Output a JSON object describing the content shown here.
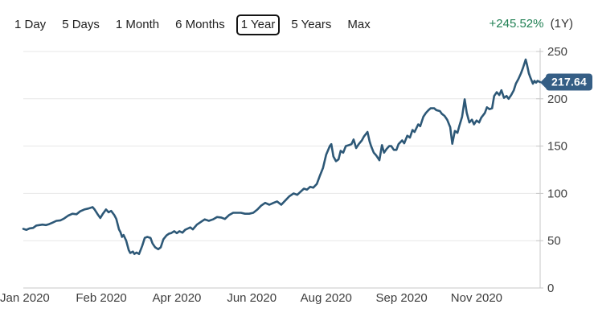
{
  "tabs": {
    "items": [
      {
        "label": "1 Day",
        "selected": false
      },
      {
        "label": "5 Days",
        "selected": false
      },
      {
        "label": "1 Month",
        "selected": false
      },
      {
        "label": "6 Months",
        "selected": false
      },
      {
        "label": "1 Year",
        "selected": true
      },
      {
        "label": "5 Years",
        "selected": false
      },
      {
        "label": "Max",
        "selected": false
      }
    ]
  },
  "change": {
    "value": "+245.52%",
    "period": "(1Y)",
    "positive_color": "#218054"
  },
  "price_badge": {
    "value": "217.64",
    "bg_color": "#355E85"
  },
  "chart_data": {
    "type": "line",
    "title": "",
    "xlabel": "",
    "ylabel": "",
    "ylim": [
      0,
      250
    ],
    "y_ticks": [
      0,
      50,
      100,
      150,
      200,
      250
    ],
    "grid": true,
    "legend": "none",
    "line_color": "#2d5877",
    "grid_color": "#e7e7e7",
    "axis_color": "#c7c7c7",
    "x_labels": [
      {
        "label": "Jan 2020",
        "t": 0.003
      },
      {
        "label": "Feb 2020",
        "t": 0.151
      },
      {
        "label": "Apr 2020",
        "t": 0.297
      },
      {
        "label": "Jun 2020",
        "t": 0.442
      },
      {
        "label": "Aug 2020",
        "t": 0.586
      },
      {
        "label": "Sep 2020",
        "t": 0.732
      },
      {
        "label": "Nov 2020",
        "t": 0.877
      }
    ],
    "last_price": 217.64,
    "points": [
      [
        0.0,
        62.5
      ],
      [
        0.006,
        61.5
      ],
      [
        0.012,
        63
      ],
      [
        0.019,
        63.5
      ],
      [
        0.025,
        66
      ],
      [
        0.031,
        66.5
      ],
      [
        0.037,
        67
      ],
      [
        0.044,
        66.5
      ],
      [
        0.05,
        67.5
      ],
      [
        0.056,
        69
      ],
      [
        0.064,
        71
      ],
      [
        0.072,
        71.5
      ],
      [
        0.079,
        73.5
      ],
      [
        0.087,
        76.5
      ],
      [
        0.095,
        78.5
      ],
      [
        0.103,
        78
      ],
      [
        0.11,
        81
      ],
      [
        0.118,
        83
      ],
      [
        0.126,
        84
      ],
      [
        0.134,
        85.5
      ],
      [
        0.138,
        83
      ],
      [
        0.145,
        77
      ],
      [
        0.149,
        74
      ],
      [
        0.154,
        78.5
      ],
      [
        0.16,
        83
      ],
      [
        0.165,
        80
      ],
      [
        0.17,
        81.5
      ],
      [
        0.176,
        77
      ],
      [
        0.18,
        73
      ],
      [
        0.185,
        62
      ],
      [
        0.188,
        59
      ],
      [
        0.191,
        54
      ],
      [
        0.194,
        56
      ],
      [
        0.199,
        50
      ],
      [
        0.204,
        40
      ],
      [
        0.207,
        37
      ],
      [
        0.212,
        38.5
      ],
      [
        0.215,
        36
      ],
      [
        0.219,
        37.5
      ],
      [
        0.224,
        36
      ],
      [
        0.23,
        44.5
      ],
      [
        0.235,
        53
      ],
      [
        0.24,
        54
      ],
      [
        0.246,
        53
      ],
      [
        0.25,
        47
      ],
      [
        0.255,
        43
      ],
      [
        0.261,
        41
      ],
      [
        0.266,
        43
      ],
      [
        0.271,
        51.5
      ],
      [
        0.277,
        55.5
      ],
      [
        0.282,
        57.5
      ],
      [
        0.286,
        58
      ],
      [
        0.292,
        60
      ],
      [
        0.297,
        58
      ],
      [
        0.302,
        60
      ],
      [
        0.308,
        58.5
      ],
      [
        0.313,
        61.5
      ],
      [
        0.317,
        62.5
      ],
      [
        0.323,
        64
      ],
      [
        0.328,
        62
      ],
      [
        0.336,
        67
      ],
      [
        0.344,
        70
      ],
      [
        0.351,
        72.5
      ],
      [
        0.359,
        71
      ],
      [
        0.367,
        72.5
      ],
      [
        0.375,
        75
      ],
      [
        0.383,
        74.5
      ],
      [
        0.39,
        73
      ],
      [
        0.398,
        77
      ],
      [
        0.406,
        79.5
      ],
      [
        0.414,
        79.5
      ],
      [
        0.421,
        79.5
      ],
      [
        0.429,
        78.5
      ],
      [
        0.437,
        78.5
      ],
      [
        0.445,
        79.5
      ],
      [
        0.453,
        83
      ],
      [
        0.46,
        87
      ],
      [
        0.468,
        90
      ],
      [
        0.476,
        88
      ],
      [
        0.484,
        90
      ],
      [
        0.491,
        91.5
      ],
      [
        0.499,
        88
      ],
      [
        0.507,
        92.5
      ],
      [
        0.515,
        97
      ],
      [
        0.523,
        100
      ],
      [
        0.53,
        98.5
      ],
      [
        0.535,
        101
      ],
      [
        0.543,
        105
      ],
      [
        0.549,
        104
      ],
      [
        0.555,
        107
      ],
      [
        0.561,
        106
      ],
      [
        0.568,
        110
      ],
      [
        0.574,
        119
      ],
      [
        0.58,
        127
      ],
      [
        0.586,
        141
      ],
      [
        0.593,
        150
      ],
      [
        0.596,
        152
      ],
      [
        0.6,
        139
      ],
      [
        0.605,
        134
      ],
      [
        0.61,
        136
      ],
      [
        0.614,
        145
      ],
      [
        0.619,
        143
      ],
      [
        0.624,
        150
      ],
      [
        0.63,
        151
      ],
      [
        0.635,
        152
      ],
      [
        0.639,
        157
      ],
      [
        0.644,
        148
      ],
      [
        0.649,
        152
      ],
      [
        0.655,
        156
      ],
      [
        0.659,
        160
      ],
      [
        0.666,
        165
      ],
      [
        0.67,
        155
      ],
      [
        0.673,
        150
      ],
      [
        0.678,
        143
      ],
      [
        0.683,
        140
      ],
      [
        0.689,
        135
      ],
      [
        0.694,
        151
      ],
      [
        0.698,
        143
      ],
      [
        0.703,
        147
      ],
      [
        0.708,
        150
      ],
      [
        0.712,
        150
      ],
      [
        0.717,
        146
      ],
      [
        0.722,
        146
      ],
      [
        0.726,
        152
      ],
      [
        0.733,
        156
      ],
      [
        0.737,
        153
      ],
      [
        0.743,
        161
      ],
      [
        0.748,
        159
      ],
      [
        0.753,
        167
      ],
      [
        0.757,
        165
      ],
      [
        0.764,
        173
      ],
      [
        0.768,
        171
      ],
      [
        0.774,
        181
      ],
      [
        0.779,
        185
      ],
      [
        0.784,
        188
      ],
      [
        0.788,
        190
      ],
      [
        0.795,
        190
      ],
      [
        0.799,
        188
      ],
      [
        0.806,
        187
      ],
      [
        0.81,
        184
      ],
      [
        0.815,
        182
      ],
      [
        0.82,
        178
      ],
      [
        0.826,
        170
      ],
      [
        0.83,
        152.5
      ],
      [
        0.835,
        166
      ],
      [
        0.84,
        164
      ],
      [
        0.844,
        172
      ],
      [
        0.849,
        181
      ],
      [
        0.854,
        199.5
      ],
      [
        0.858,
        185
      ],
      [
        0.863,
        175
      ],
      [
        0.868,
        178
      ],
      [
        0.872,
        173
      ],
      [
        0.877,
        177
      ],
      [
        0.882,
        175
      ],
      [
        0.886,
        180
      ],
      [
        0.893,
        185
      ],
      [
        0.897,
        191
      ],
      [
        0.902,
        189
      ],
      [
        0.907,
        190
      ],
      [
        0.911,
        203
      ],
      [
        0.916,
        207
      ],
      [
        0.921,
        204
      ],
      [
        0.925,
        209
      ],
      [
        0.93,
        201
      ],
      [
        0.935,
        203
      ],
      [
        0.939,
        200
      ],
      [
        0.944,
        204
      ],
      [
        0.949,
        209
      ],
      [
        0.953,
        216
      ],
      [
        0.958,
        221
      ],
      [
        0.963,
        227
      ],
      [
        0.967,
        233
      ],
      [
        0.972,
        241.5
      ],
      [
        0.975,
        235
      ],
      [
        0.978,
        227
      ],
      [
        0.981,
        222.5
      ],
      [
        0.986,
        216
      ],
      [
        0.989,
        219
      ],
      [
        0.992,
        217
      ],
      [
        0.995,
        219
      ],
      [
        1.0,
        217.64
      ]
    ]
  }
}
